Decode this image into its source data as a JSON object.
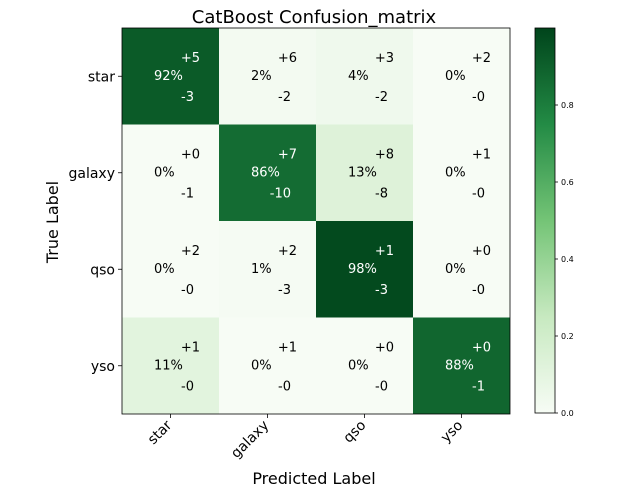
{
  "chart_data": {
    "type": "heatmap",
    "title": "CatBoost Confusion_matrix",
    "xlabel": "Predicted Label",
    "ylabel": "True Label",
    "categories": [
      "star",
      "galaxy",
      "qso",
      "yso"
    ],
    "rows": [
      "star",
      "galaxy",
      "qso",
      "yso"
    ],
    "values": [
      [
        0.92,
        0.02,
        0.04,
        0.0
      ],
      [
        0.0,
        0.86,
        0.13,
        0.0
      ],
      [
        0.0,
        0.01,
        0.98,
        0.0
      ],
      [
        0.11,
        0.0,
        0.0,
        0.88
      ]
    ],
    "percent_labels": [
      [
        "92%",
        "2%",
        "4%",
        "0%"
      ],
      [
        "0%",
        "86%",
        "13%",
        "0%"
      ],
      [
        "0%",
        "1%",
        "98%",
        "0%"
      ],
      [
        "11%",
        "0%",
        "0%",
        "88%"
      ]
    ],
    "plus_labels": [
      [
        "+5",
        "+6",
        "+3",
        "+2"
      ],
      [
        "+0",
        "+7",
        "+8",
        "+1"
      ],
      [
        "+2",
        "+2",
        "+1",
        "+0"
      ],
      [
        "+1",
        "+1",
        "+0",
        "+0"
      ]
    ],
    "minus_labels": [
      [
        "-3",
        "-2",
        "-2",
        "-0"
      ],
      [
        "-1",
        "-10",
        "-8",
        "-0"
      ],
      [
        "-0",
        "-3",
        "-3",
        "-0"
      ],
      [
        "-0",
        "-0",
        "-0",
        "-1"
      ]
    ],
    "colorbar": {
      "ticks": [
        "0.0",
        "0.2",
        "0.4",
        "0.6",
        "0.8"
      ],
      "range": [
        0,
        1
      ],
      "colormap": [
        "#f7fcf5",
        "#c7e9c0",
        "#74c476",
        "#238b45",
        "#00441b"
      ]
    },
    "grid": false,
    "legend": "none"
  }
}
